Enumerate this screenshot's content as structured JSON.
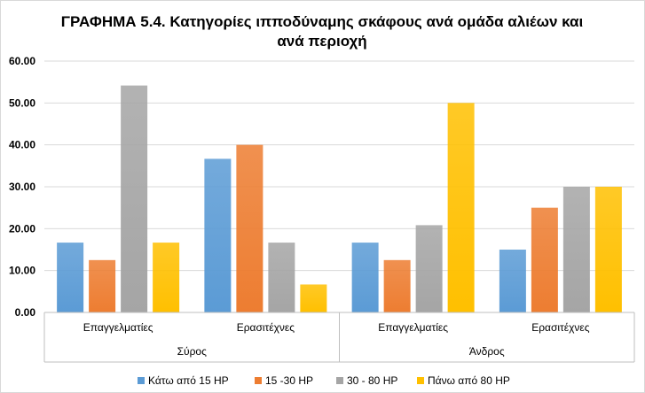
{
  "chart_data": {
    "type": "bar",
    "title": "ΓΡΑΦΗΜΑ 5.4. Κατηγορίες ιπποδύναμης σκάφους ανά ομάδα αλιέων και ανά περιοχή",
    "title_lines": [
      "ΓΡΑΦΗΜΑ 5.4. Κατηγορίες ιπποδύναμης σκάφους ανά ομάδα αλιέων και",
      "ανά περιοχή"
    ],
    "groups": [
      {
        "name": "Σύρος",
        "categories": [
          "Επαγγελματίες",
          "Ερασιτέχνες"
        ]
      },
      {
        "name": "Άνδρος",
        "categories": [
          "Επαγγελματίες",
          "Ερασιτέχνες"
        ]
      }
    ],
    "categories": [
      "Επαγγελματίες",
      "Ερασιτέχνες",
      "Επαγγελματίες",
      "Ερασιτέχνες"
    ],
    "series": [
      {
        "name": "Κάτω από 15 HP",
        "color": "#5b9bd5",
        "values": [
          16.67,
          36.67,
          16.67,
          15.0
        ]
      },
      {
        "name": "15 -30 HP",
        "color": "#ed7d31",
        "values": [
          12.5,
          40.0,
          12.5,
          25.0
        ]
      },
      {
        "name": "30 - 80 HP",
        "color": "#a5a5a5",
        "values": [
          54.17,
          16.67,
          20.83,
          30.0
        ]
      },
      {
        "name": "Πάνω από 80 HP",
        "color": "#ffc000",
        "values": [
          16.67,
          6.67,
          50.0,
          30.0
        ]
      }
    ],
    "ylim": [
      0,
      60
    ],
    "yticks": [
      "0.00",
      "10.00",
      "20.00",
      "30.00",
      "40.00",
      "50.00",
      "60.00"
    ],
    "grid": true,
    "legend_position": "bottom"
  }
}
